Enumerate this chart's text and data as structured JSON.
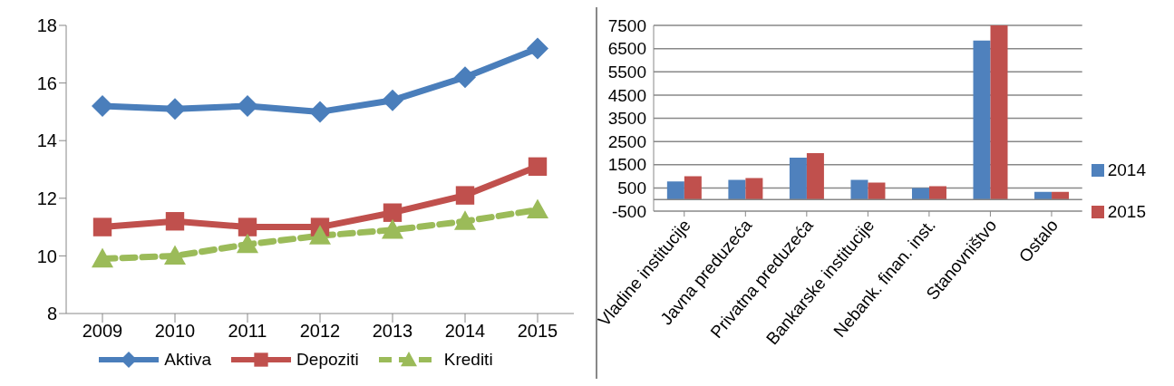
{
  "chart_data": [
    {
      "type": "line",
      "categories": [
        "2009",
        "2010",
        "2011",
        "2012",
        "2013",
        "2014",
        "2015"
      ],
      "series": [
        {
          "name": "Aktiva",
          "color": "#4a7ebb",
          "marker": "diamond",
          "line_style": "solid",
          "values": [
            15.2,
            15.1,
            15.2,
            15.0,
            15.4,
            16.2,
            17.2
          ]
        },
        {
          "name": "Depoziti",
          "color": "#c0504d",
          "marker": "square",
          "line_style": "solid",
          "values": [
            11.0,
            11.2,
            11.0,
            11.0,
            11.5,
            12.1,
            13.1
          ]
        },
        {
          "name": "Krediti",
          "color": "#9bbb59",
          "marker": "triangle",
          "line_style": "dashed",
          "values": [
            9.9,
            10.0,
            10.4,
            10.7,
            10.9,
            11.2,
            11.6
          ]
        }
      ],
      "ylim": [
        8,
        18
      ],
      "yticks": [
        8,
        10,
        12,
        14,
        16,
        18
      ],
      "grid": false,
      "legend": "bottom"
    },
    {
      "type": "bar",
      "categories": [
        "Vladine institucije",
        "Javna preduzeća",
        "Privatna preduzeća",
        "Bankarske institucije",
        "Nebank. finan. inst.",
        "Stanovništvo",
        "Ostalo"
      ],
      "series": [
        {
          "name": "2014",
          "color": "#4f81bd",
          "values": [
            780,
            850,
            1800,
            850,
            500,
            6850,
            330
          ]
        },
        {
          "name": "2015",
          "color": "#c0504d",
          "values": [
            1000,
            920,
            2000,
            730,
            570,
            7500,
            330
          ]
        }
      ],
      "ylim": [
        -500,
        7500
      ],
      "yticks": [
        -500,
        500,
        1500,
        2500,
        3500,
        4500,
        5500,
        6500,
        7500
      ],
      "grid": "y",
      "legend": "right"
    }
  ]
}
